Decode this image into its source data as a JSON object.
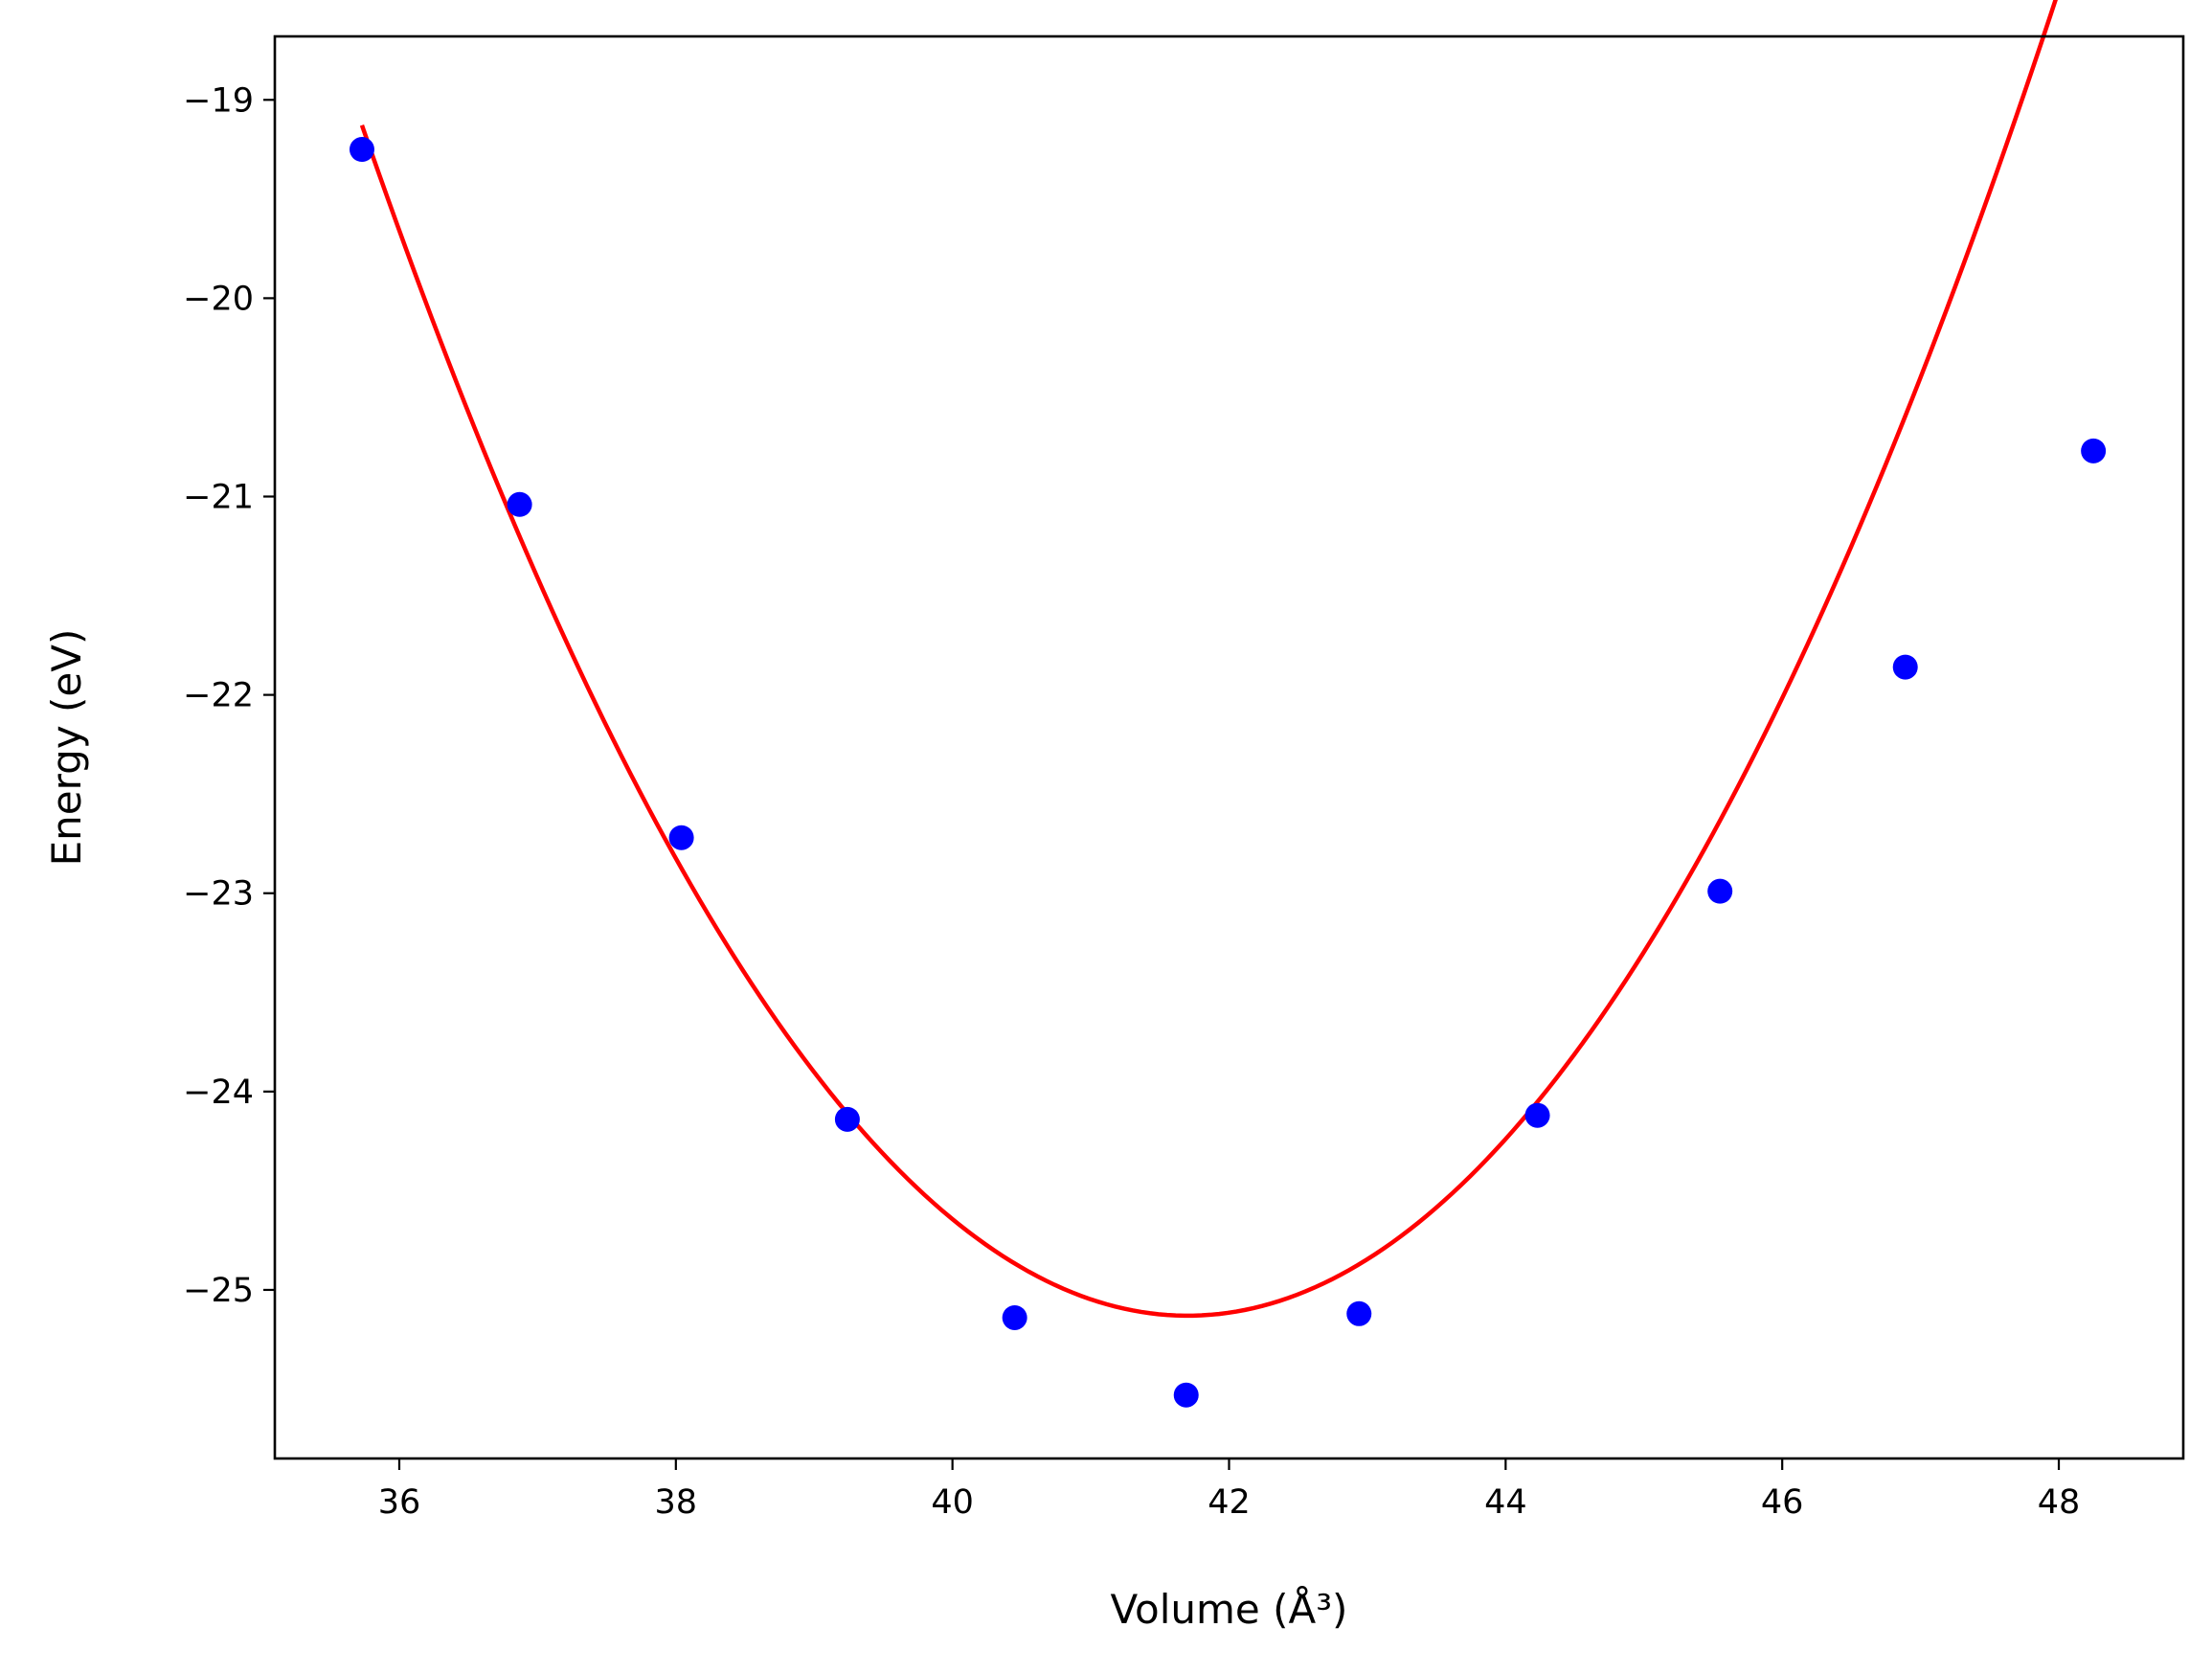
{
  "chart_data": {
    "type": "scatter",
    "title": "",
    "xlabel": "Volume (Å³)",
    "ylabel": "Energy (eV)",
    "xlim": [
      35.1,
      48.9
    ],
    "ylim": [
      -25.85,
      -18.68
    ],
    "xticks": [
      36,
      38,
      40,
      42,
      44,
      46,
      48
    ],
    "yticks": [
      -19,
      -20,
      -21,
      -22,
      -23,
      -24,
      -25
    ],
    "xtick_labels": [
      "36",
      "38",
      "40",
      "42",
      "44",
      "46",
      "48"
    ],
    "ytick_labels": [
      "−19",
      "−20",
      "−21",
      "−22",
      "−23",
      "−24",
      "−25"
    ],
    "grid": false,
    "series": [
      {
        "kind": "scatter",
        "color": "#0000ff",
        "x": [
          35.73,
          36.87,
          38.04,
          39.24,
          40.45,
          41.69,
          42.94,
          44.23,
          45.55,
          46.89,
          48.25
        ],
        "y": [
          -19.25,
          -21.04,
          -22.72,
          -24.14,
          -25.14,
          -25.53,
          -25.12,
          -24.12,
          -22.99,
          -21.86,
          -20.77
        ]
      },
      {
        "kind": "line",
        "color": "#ff0000",
        "fit": "quadratic",
        "vertex_x": 41.7,
        "vertex_y": -25.13,
        "curvature": 0.1684,
        "xrange": [
          35.73,
          48.25
        ]
      }
    ]
  }
}
